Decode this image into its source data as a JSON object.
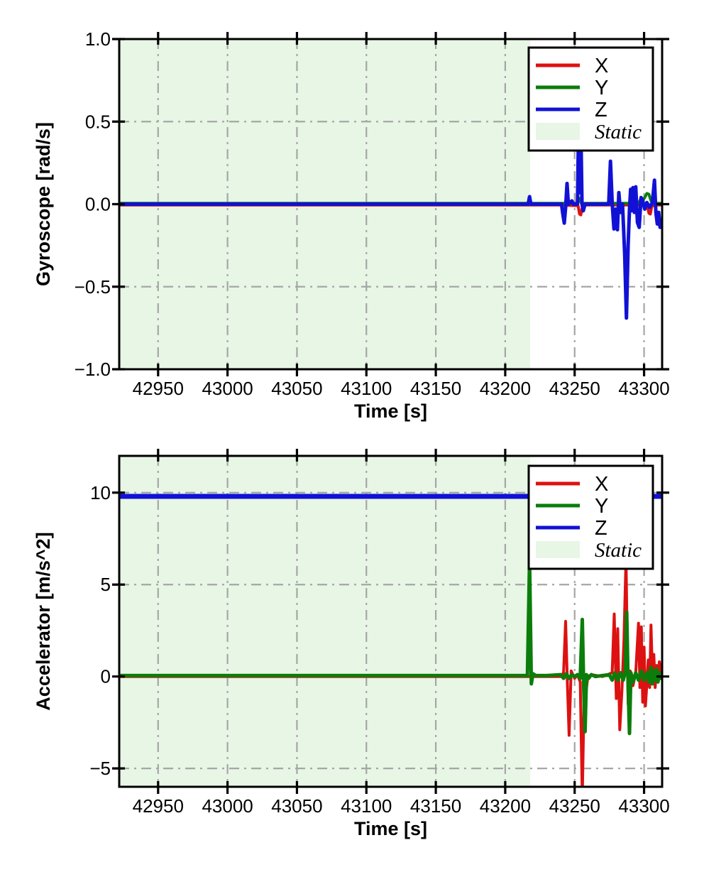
{
  "figure": {
    "background": "#ffffff"
  },
  "colors": {
    "x_series": "#dd1111",
    "y_series": "#0b7d0b",
    "z_series": "#1111d6",
    "static_fill": "#e7f6e5",
    "grid": "#a6a6a6",
    "axis": "#000000",
    "legend_bg": "#ffffff",
    "text": "#000000"
  },
  "chart_data": [
    {
      "type": "line",
      "title": "",
      "xlabel": "Time [s]",
      "ylabel": "Gyroscope [rad/s]",
      "xlim": [
        42922,
        43313
      ],
      "ylim": [
        -1.0,
        1.0
      ],
      "xticks": [
        42950,
        43000,
        43050,
        43100,
        43150,
        43200,
        43250,
        43300
      ],
      "xtick_labels": [
        "42950",
        "43000",
        "43050",
        "43100",
        "43150",
        "43200",
        "43250",
        "43300"
      ],
      "yticks": [
        1.0,
        0.5,
        0.0,
        -0.5,
        -1.0
      ],
      "ytick_labels": [
        "1.0",
        "0.5",
        "0.0",
        "−0.5",
        "−1.0"
      ],
      "grid": "dash-dot",
      "static_region": {
        "label": "Static",
        "from": 42922,
        "to": 43218,
        "fill": "#e7f6e5"
      },
      "legend": {
        "position": "upper-right",
        "entries": [
          {
            "label": "X",
            "type": "line",
            "color": "#dd1111",
            "italic": false
          },
          {
            "label": "Y",
            "type": "line",
            "color": "#0b7d0b",
            "italic": false
          },
          {
            "label": "Z",
            "type": "line",
            "color": "#1111d6",
            "italic": false
          },
          {
            "label": "Static",
            "type": "patch",
            "color": "#e7f6e5",
            "italic": true
          }
        ]
      },
      "series": [
        {
          "name": "X",
          "color": "#dd1111",
          "width": 4,
          "points": [
            [
              42922,
              -0.005
            ],
            [
              43240,
              -0.005
            ],
            [
              43252.5,
              -0.01
            ],
            [
              43253.5,
              -0.06
            ],
            [
              43254.5,
              -0.065
            ],
            [
              43255.5,
              -0.015
            ],
            [
              43257,
              -0.005
            ],
            [
              43300,
              -0.005
            ],
            [
              43302.5,
              -0.02
            ],
            [
              43303.5,
              -0.055
            ],
            [
              43304.5,
              -0.06
            ],
            [
              43305.5,
              -0.015
            ],
            [
              43307,
              -0.005
            ],
            [
              43313,
              -0.005
            ]
          ]
        },
        {
          "name": "Y",
          "color": "#0b7d0b",
          "width": 4,
          "points": [
            [
              42922,
              0.005
            ],
            [
              43251.5,
              0.005
            ],
            [
              43252.5,
              0.03
            ],
            [
              43253.5,
              0.035
            ],
            [
              43254.5,
              0.01
            ],
            [
              43256,
              0.005
            ],
            [
              43296,
              0.005
            ],
            [
              43297.5,
              0.03
            ],
            [
              43299,
              0.02
            ],
            [
              43300.5,
              0.04
            ],
            [
              43302,
              0.065
            ],
            [
              43303.5,
              0.06
            ],
            [
              43305,
              0.02
            ],
            [
              43306,
              0.005
            ],
            [
              43313,
              0.005
            ]
          ]
        },
        {
          "name": "Z",
          "color": "#1111d6",
          "width": 5,
          "points": [
            [
              42922,
              0
            ],
            [
              43216.5,
              0
            ],
            [
              43217.5,
              0.045
            ],
            [
              43218.5,
              0
            ],
            [
              43240.5,
              0
            ],
            [
              43241.5,
              -0.06
            ],
            [
              43242.5,
              -0.115
            ],
            [
              43243.5,
              -0.02
            ],
            [
              43244.5,
              0.125
            ],
            [
              43245.5,
              0
            ],
            [
              43248,
              0.02
            ],
            [
              43249,
              0
            ],
            [
              43252,
              0
            ],
            [
              43252.8,
              0.45
            ],
            [
              43253.6,
              0.07
            ],
            [
              43254.5,
              0.45
            ],
            [
              43255.3,
              0
            ],
            [
              43256.2,
              -0.04
            ],
            [
              43257.5,
              0
            ],
            [
              43274.5,
              0
            ],
            [
              43275.8,
              0.26
            ],
            [
              43277,
              0.01
            ],
            [
              43278.3,
              -0.15
            ],
            [
              43279.5,
              -0.03
            ],
            [
              43280.8,
              -0.155
            ],
            [
              43281.8,
              0.07
            ],
            [
              43283,
              -0.05
            ],
            [
              43284.5,
              0
            ],
            [
              43286,
              -0.3
            ],
            [
              43287.3,
              -0.69
            ],
            [
              43288.5,
              -0.25
            ],
            [
              43289.5,
              -0.03
            ],
            [
              43290.3,
              0.09
            ],
            [
              43291,
              -0.04
            ],
            [
              43292,
              0.1
            ],
            [
              43293,
              -0.05
            ],
            [
              43294,
              0.105
            ],
            [
              43295.2,
              -0.11
            ],
            [
              43296.5,
              -0.14
            ],
            [
              43297.8,
              0.04
            ],
            [
              43299,
              0.02
            ],
            [
              43300.5,
              -0.03
            ],
            [
              43302,
              0.01
            ],
            [
              43304,
              -0.02
            ],
            [
              43306,
              0.01
            ],
            [
              43307.5,
              0.145
            ],
            [
              43308.5,
              -0.05
            ],
            [
              43309.5,
              -0.12
            ],
            [
              43310.5,
              -0.05
            ],
            [
              43311.5,
              -0.14
            ],
            [
              43312.3,
              -0.1
            ],
            [
              43313,
              -0.09
            ]
          ]
        }
      ]
    },
    {
      "type": "line",
      "title": "",
      "xlabel": "Time [s]",
      "ylabel": "Accelerator [m/s^2]",
      "xlim": [
        42922,
        43313
      ],
      "ylim": [
        -6,
        12
      ],
      "xticks": [
        42950,
        43000,
        43050,
        43100,
        43150,
        43200,
        43250,
        43300
      ],
      "xtick_labels": [
        "42950",
        "43000",
        "43050",
        "43100",
        "43150",
        "43200",
        "43250",
        "43300"
      ],
      "yticks": [
        10,
        5,
        0,
        -5
      ],
      "ytick_labels": [
        "10",
        "5",
        "0",
        "−5"
      ],
      "grid": "dash-dot",
      "static_region": {
        "label": "Static",
        "from": 42922,
        "to": 43218,
        "fill": "#e7f6e5"
      },
      "legend": {
        "position": "upper-right",
        "entries": [
          {
            "label": "X",
            "type": "line",
            "color": "#dd1111",
            "italic": false
          },
          {
            "label": "Y",
            "type": "line",
            "color": "#0b7d0b",
            "italic": false
          },
          {
            "label": "Z",
            "type": "line",
            "color": "#1111d6",
            "italic": false
          },
          {
            "label": "Static",
            "type": "patch",
            "color": "#e7f6e5",
            "italic": true
          }
        ]
      },
      "series": [
        {
          "name": "X",
          "color": "#dd1111",
          "width": 4,
          "points": [
            [
              42922,
              0
            ],
            [
              43240,
              0
            ],
            [
              43242,
              0.2
            ],
            [
              43243.5,
              3.0
            ],
            [
              43244.8,
              -0.5
            ],
            [
              43246,
              -3.2
            ],
            [
              43247.5,
              0.3
            ],
            [
              43250,
              -0.1
            ],
            [
              43252,
              0.1
            ],
            [
              43254,
              -0.3
            ],
            [
              43255.5,
              -6.6
            ],
            [
              43257,
              -0.4
            ],
            [
              43258,
              -1.0
            ],
            [
              43259.5,
              0
            ],
            [
              43262,
              0.1
            ],
            [
              43270,
              0
            ],
            [
              43277,
              0.2
            ],
            [
              43278.5,
              3.4
            ],
            [
              43280,
              -1.2
            ],
            [
              43281,
              2.6
            ],
            [
              43282.5,
              -2.9
            ],
            [
              43284,
              -0.8
            ],
            [
              43285.5,
              2.0
            ],
            [
              43287,
              6.4
            ],
            [
              43288.5,
              -1.5
            ],
            [
              43290,
              0.3
            ],
            [
              43292,
              -0.5
            ],
            [
              43294,
              0.2
            ],
            [
              43296,
              2.9
            ],
            [
              43297,
              -0.6
            ],
            [
              43298,
              2.7
            ],
            [
              43299,
              -1.4
            ],
            [
              43300,
              1.6
            ],
            [
              43301,
              -1.6
            ],
            [
              43302,
              -0.4
            ],
            [
              43303,
              0.9
            ],
            [
              43304,
              -0.6
            ],
            [
              43305,
              2.8
            ],
            [
              43306,
              0.2
            ],
            [
              43307,
              1.2
            ],
            [
              43308,
              -0.6
            ],
            [
              43309,
              0.6
            ],
            [
              43310,
              -0.3
            ],
            [
              43311,
              0.8
            ],
            [
              43312,
              0.2
            ],
            [
              43313,
              0.4
            ]
          ]
        },
        {
          "name": "Y",
          "color": "#0b7d0b",
          "width": 5,
          "points": [
            [
              42922,
              0.05
            ],
            [
              43216,
              0.05
            ],
            [
              43217.5,
              6.3
            ],
            [
              43218.8,
              -0.4
            ],
            [
              43220,
              0.15
            ],
            [
              43222,
              0.05
            ],
            [
              43230,
              0.05
            ],
            [
              43240,
              0.1
            ],
            [
              43242,
              -0.1
            ],
            [
              43244,
              0.15
            ],
            [
              43246,
              -0.1
            ],
            [
              43248,
              0.1
            ],
            [
              43250,
              0
            ],
            [
              43252,
              0.1
            ],
            [
              43254,
              -0.1
            ],
            [
              43255.5,
              3.1
            ],
            [
              43256.5,
              -0.6
            ],
            [
              43257.5,
              -3.0
            ],
            [
              43258.5,
              0.1
            ],
            [
              43260,
              -0.1
            ],
            [
              43262,
              0.1
            ],
            [
              43265,
              0
            ],
            [
              43270,
              0.05
            ],
            [
              43275,
              0.1
            ],
            [
              43277,
              -0.2
            ],
            [
              43279,
              0.2
            ],
            [
              43281,
              -0.2
            ],
            [
              43283,
              0.2
            ],
            [
              43285,
              -0.2
            ],
            [
              43286.5,
              0.3
            ],
            [
              43287.5,
              3.5
            ],
            [
              43288.5,
              -0.5
            ],
            [
              43289.5,
              -3.1
            ],
            [
              43290.5,
              0.2
            ],
            [
              43292,
              -0.3
            ],
            [
              43294,
              0.2
            ],
            [
              43296,
              -0.2
            ],
            [
              43298,
              0.3
            ],
            [
              43300,
              -0.2
            ],
            [
              43302,
              0.2
            ],
            [
              43303.5,
              -0.3
            ],
            [
              43305,
              0.5
            ],
            [
              43306,
              -0.4
            ],
            [
              43307,
              0.3
            ],
            [
              43308,
              -0.2
            ],
            [
              43309,
              0.4
            ],
            [
              43310,
              -0.3
            ],
            [
              43311,
              0.2
            ],
            [
              43312,
              -0.1
            ],
            [
              43313,
              0.1
            ]
          ]
        },
        {
          "name": "Z",
          "color": "#1111d6",
          "width": 7,
          "points": [
            [
              42922,
              9.8
            ],
            [
              43313,
              9.8
            ]
          ]
        }
      ]
    }
  ]
}
